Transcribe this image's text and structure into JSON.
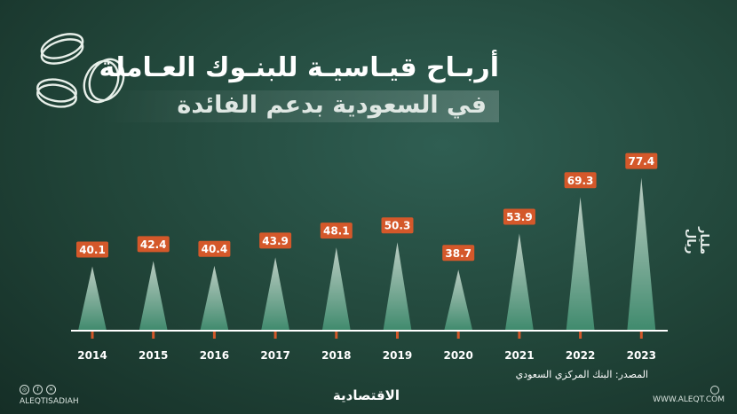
{
  "header": {
    "title": "أربـاح قيـاسيـة للبنـوك العـاملة",
    "subtitle": "في السعودية بدعم الفائدة"
  },
  "footer": {
    "source": "المصدر: البنك المركزي السعودي",
    "brand": "الاقتصادية",
    "social_handle": "ALEQTISADIAH",
    "website": "WWW.ALEQT.COM"
  },
  "colors": {
    "label_bg": "#d4582a",
    "spike_top": "#c9d9cf",
    "spike_bottom": "#3f8a6d",
    "axis": "#ffffff",
    "tick_mark": "#d4582a"
  },
  "icons": [
    "coins-icon",
    "instagram-icon",
    "facebook-icon",
    "x-icon",
    "web-icon"
  ],
  "chart_data": {
    "type": "bar",
    "title": "أربـاح قيـاسيـة للبنـوك العـاملة",
    "subtitle": "في السعودية بدعم الفائدة",
    "ylabel": "مليار ريال",
    "xlabel": "",
    "categories": [
      "2014",
      "2015",
      "2016",
      "2017",
      "2018",
      "2019",
      "2020",
      "2021",
      "2022",
      "2023"
    ],
    "values": [
      40.1,
      42.4,
      40.4,
      43.9,
      48.1,
      50.3,
      38.7,
      53.9,
      69.3,
      77.4
    ],
    "value_labels": [
      "40.1",
      "42.4",
      "40.4",
      "43.9",
      "48.1",
      "50.3",
      "38.7",
      "53.9",
      "69.3",
      "77.4"
    ],
    "ylim": [
      0,
      80
    ],
    "grid": false,
    "legend": "none"
  }
}
